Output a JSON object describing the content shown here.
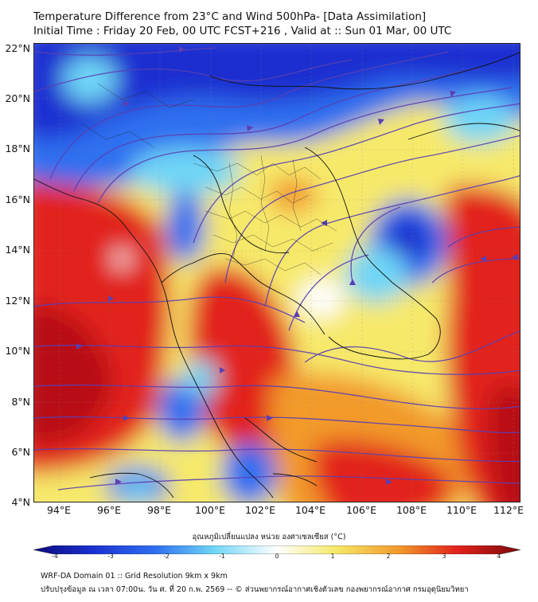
{
  "title": {
    "line1": "Temperature Difference from 23°C and Wind 500hPa- [Data Assimilation]",
    "line2": "Initial Time : Friday 20 Feb, 00 UTC FCST+216 , Valid at ::  Sun 01 Mar, 00 UTC"
  },
  "map": {
    "lat_labels": [
      "22°N",
      "20°N",
      "18°N",
      "16°N",
      "14°N",
      "12°N",
      "10°N",
      "8°N",
      "6°N",
      "4°N"
    ],
    "lon_labels": [
      "94°E",
      "96°E",
      "98°E",
      "100°E",
      "102°E",
      "104°E",
      "106°E",
      "108°E",
      "110°E",
      "112°E"
    ],
    "colors": {
      "cold_dark": "#1a2fd0",
      "cold": "#2f6ff0",
      "cool": "#6fd6f6",
      "neutral": "#ffffff",
      "warm": "#f6e96a",
      "hot": "#f29a2c",
      "very_hot": "#e2221c",
      "extreme": "#b80f14",
      "streamline": "#5a3fb2",
      "coast": "#111111"
    }
  },
  "colorbar": {
    "title": "อุณหภูมิเปลี่ยนแปลง หน่วย องศาเซลเซียส (°C)",
    "ticks": [
      "-4",
      "-3",
      "-2",
      "-1",
      "0",
      "1",
      "2",
      "3",
      "4"
    ]
  },
  "footer": {
    "line1": "WRF-DA Domain 01 :: Grid Resolution 9km x 9km",
    "line2": "ปรับปรุงข้อมูล ณ เวลา 07:00น. วัน ศ. ที่ 20 ก.พ. 2569 -- © ส่วนพยากรณ์อากาศเชิงตัวเลข กองพยากรณ์อากาศ กรมอุตุนิยมวิทยา"
  }
}
